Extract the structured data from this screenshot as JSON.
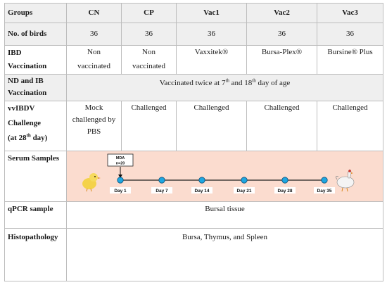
{
  "header": {
    "groups": "Groups",
    "cols": [
      "CN",
      "CP",
      "Vac1",
      "Vac2",
      "Vac3"
    ]
  },
  "rows": {
    "birds": {
      "label": "No. of birds",
      "values": [
        "36",
        "36",
        "36",
        "36",
        "36"
      ]
    },
    "ibd": {
      "label_line1": "IBD",
      "label_line2": "Vaccination",
      "values": [
        [
          "Non",
          "vaccinated"
        ],
        [
          "Non",
          "vaccinated"
        ],
        [
          "Vaxxitek®"
        ],
        [
          "Bursa-Plex®"
        ],
        [
          "Bursine® Plus"
        ]
      ]
    },
    "ndib": {
      "label_line1": "ND and IB",
      "label_line2": "Vaccination",
      "text_a": "Vaccinated twice at 7",
      "sup_a": "th",
      "text_b": " and 18",
      "sup_b": "th",
      "text_c": " day of age"
    },
    "vvibdv": {
      "label_line1": "vvIBDV",
      "label_line2": "Challenge",
      "label_line3_a": "(at 28",
      "label_line3_sup": "th",
      "label_line3_b": "  day)",
      "cn": [
        "Mock",
        "challenged by",
        "PBS"
      ],
      "others": [
        "Challenged",
        "Challenged",
        "Challenged",
        "Challenged"
      ]
    },
    "serum": {
      "label": "Serum Samples",
      "mda_line1": "MDA",
      "mda_line2": "n=20",
      "days": [
        "Day 1",
        "Day 7",
        "Day 14",
        "Day 21",
        "Day 28",
        "Day 35"
      ]
    },
    "qpcr": {
      "label": "qPCR sample",
      "value": "Bursal tissue"
    },
    "histo": {
      "label": "Histopathology",
      "value": "Bursa, Thymus, and Spleen"
    }
  },
  "colors": {
    "timeline_bg": "#fbdccf",
    "dot_fill": "#1ea7e1",
    "dot_stroke": "#0b4f7a",
    "shade": "#efefef",
    "border": "#bdbdbd"
  },
  "icons": {
    "start": "chick-icon",
    "end": "hen-icon"
  }
}
